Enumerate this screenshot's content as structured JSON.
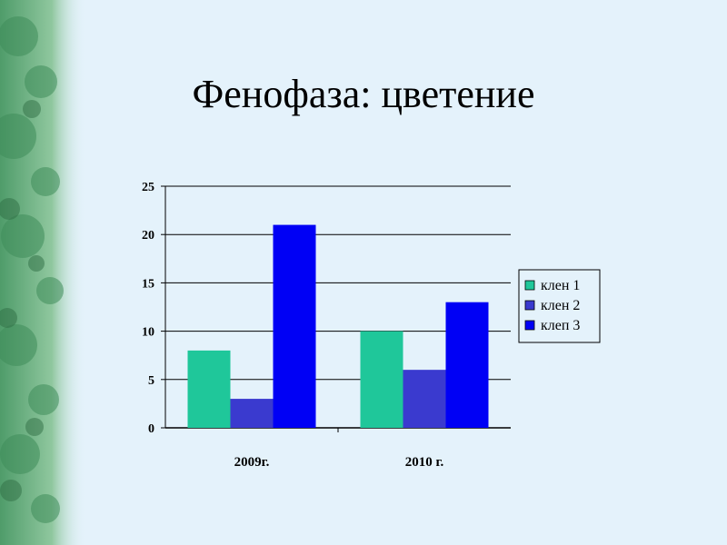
{
  "slide": {
    "title": "Фенофаза: цветение",
    "background": "#e4f2fb"
  },
  "chart_data": {
    "type": "bar",
    "categories": [
      "2009г.",
      "2010 г."
    ],
    "series": [
      {
        "name": "клен 1",
        "values": [
          8,
          10
        ],
        "color": "#1fc79a"
      },
      {
        "name": "клен 2",
        "values": [
          3,
          6
        ],
        "color": "#3a3acf"
      },
      {
        "name": "клеп 3",
        "values": [
          21,
          13
        ],
        "color": "#0000f5"
      }
    ],
    "yticks": [
      "0",
      "5",
      "10",
      "15",
      "20",
      "25"
    ],
    "ylim": [
      0,
      25
    ],
    "grid": true,
    "legend": "right",
    "title": "",
    "xlabel": "",
    "ylabel": ""
  }
}
